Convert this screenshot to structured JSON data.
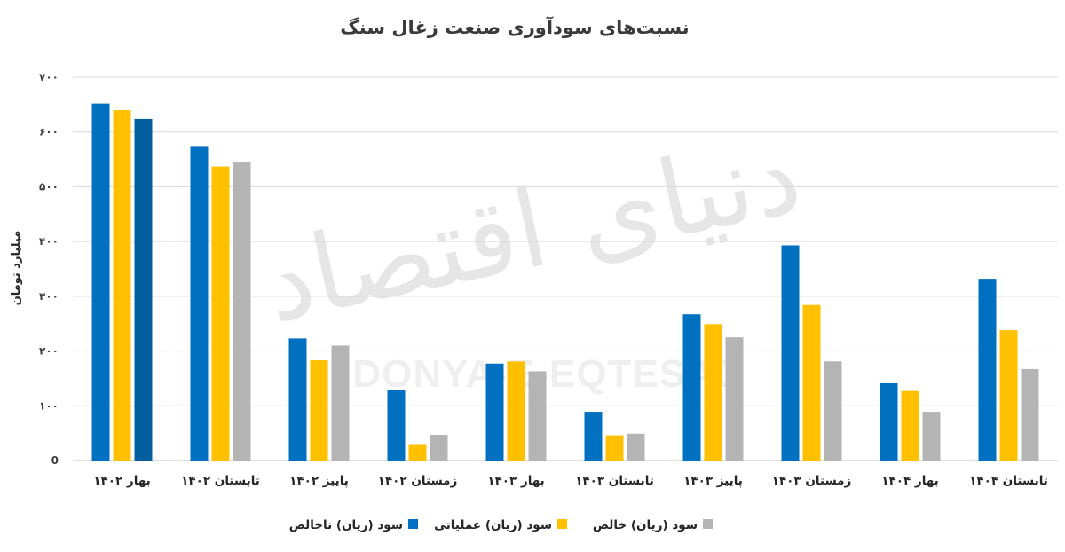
{
  "watermark": {
    "fa": "دنیای اقتصاد",
    "en": "DONYA-E-EQTESAD"
  },
  "chart_data": {
    "type": "bar",
    "title": "نسبت‌های سودآوری صنعت زغال سنگ",
    "ylabel": "میلیارد تومان",
    "ylim": [
      0,
      700
    ],
    "yticks": [
      0,
      100,
      200,
      300,
      400,
      500,
      600,
      700
    ],
    "ytick_labels": [
      "0",
      "۱۰۰",
      "۲۰۰",
      "۳۰۰",
      "۴۰۰",
      "۵۰۰",
      "۶۰۰",
      "۷۰۰"
    ],
    "grid": true,
    "legend_position": "bottom",
    "categories": [
      "بهار ۱۴۰۲",
      "تابستان ۱۴۰۲",
      "پاییز ۱۴۰۲",
      "زمستان ۱۴۰۲",
      "بهار ۱۴۰۳",
      "تابستان ۱۴۰۳",
      "پاییز ۱۴۰۳",
      "زمستان ۱۴۰۳",
      "بهار ۱۴۰۴",
      "تابستان ۱۴۰۴"
    ],
    "series": [
      {
        "name": "سود (زیان) ناخالص",
        "color": "#0070c0",
        "values": [
          652,
          573,
          223,
          129,
          177,
          89,
          267,
          393,
          141,
          332
        ]
      },
      {
        "name": "سود (زیان) عملیاتی",
        "color": "#ffc000",
        "values": [
          640,
          537,
          183,
          30,
          181,
          46,
          249,
          284,
          127,
          238
        ]
      },
      {
        "name": "سود (زیان) خالص",
        "color": "#b4b4b4",
        "values": [
          624,
          546,
          210,
          47,
          163,
          49,
          225,
          181,
          89,
          167
        ]
      }
    ],
    "first_category_overrides": {
      "2": "#035ea0"
    }
  }
}
